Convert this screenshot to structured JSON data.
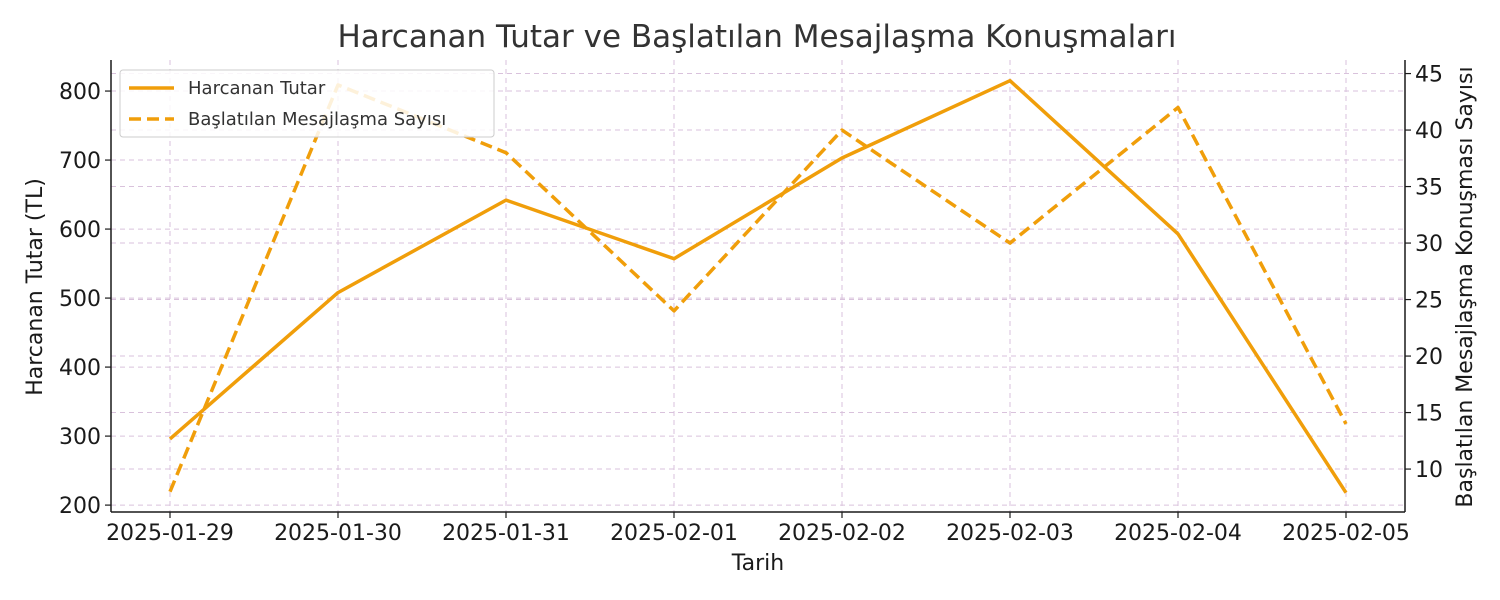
{
  "chart_data": {
    "type": "line",
    "title": "Harcanan Tutar ve Başlatılan Mesajlaşma Konuşmaları",
    "xlabel": "Tarih",
    "ylabel": "Harcanan Tutar (TL)",
    "y2label": "Başlatılan Mesajlaşma Konuşması Sayısı",
    "categories": [
      "2025-01-29",
      "2025-01-30",
      "2025-01-31",
      "2025-02-01",
      "2025-02-02",
      "2025-02-03",
      "2025-02-04",
      "2025-02-05"
    ],
    "ylim": [
      190,
      845
    ],
    "y2lim": [
      6.2,
      46.2
    ],
    "yticks": [
      200,
      300,
      400,
      500,
      600,
      700,
      800
    ],
    "y2ticks": [
      10,
      15,
      20,
      25,
      30,
      35,
      40,
      45
    ],
    "grid": true,
    "legend_position": "top-left",
    "colors": {
      "line": "#f09e0a",
      "grid": "#d9c2dc",
      "axis": "#1a1a1a"
    },
    "series": [
      {
        "name": "Harcanan Tutar",
        "axis": "left",
        "style": "solid",
        "values": [
          296,
          508,
          642,
          557,
          703,
          815,
          593,
          218
        ]
      },
      {
        "name": "Başlatılan Mesajlaşma Sayısı",
        "axis": "right",
        "style": "dashed",
        "values": [
          8,
          44,
          38,
          24,
          40,
          30,
          42,
          14
        ]
      }
    ]
  }
}
